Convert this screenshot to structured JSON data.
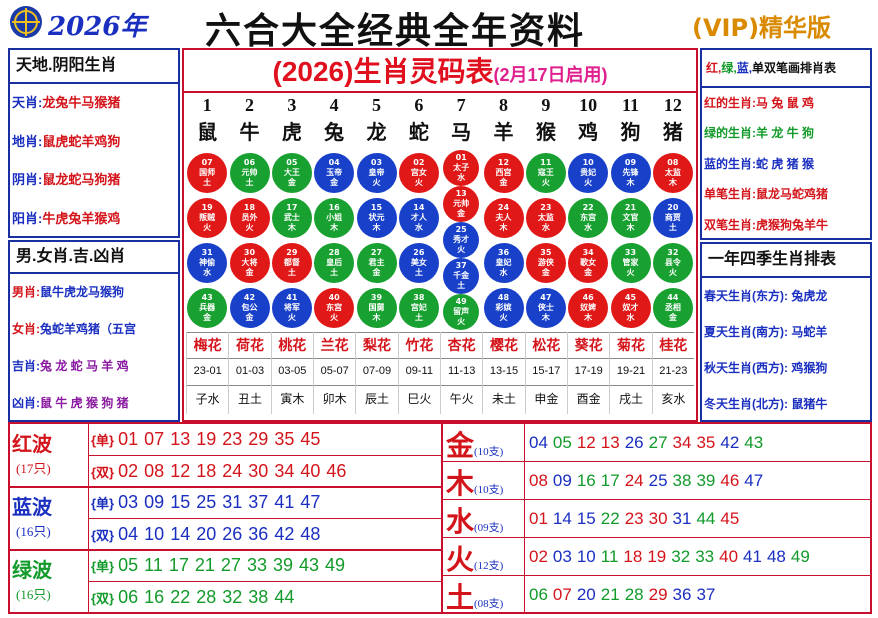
{
  "header": {
    "year": "2026年",
    "title": "六合大全经典全年资料",
    "badge": "(VIP)精华版"
  },
  "left_top": {
    "title": "天地.阴阳生肖",
    "rows": [
      {
        "label": "天肖:",
        "value": "龙兔牛马猴猪",
        "label_color": "#1a2fc0",
        "value_color": "#d4141b"
      },
      {
        "label": "地肖:",
        "value": "鼠虎蛇羊鸡狗",
        "label_color": "#1a2fc0",
        "value_color": "#d4141b"
      },
      {
        "label": "阴肖:",
        "value": "鼠龙蛇马狗猪",
        "label_color": "#1a2fc0",
        "value_color": "#d4141b"
      },
      {
        "label": "阳肖:",
        "value": "牛虎兔羊猴鸡",
        "label_color": "#1a2fc0",
        "value_color": "#d4141b"
      }
    ]
  },
  "left_bottom": {
    "title": "男.女肖.吉.凶肖",
    "rows": [
      {
        "label": "男肖:",
        "value": "鼠牛虎龙马猴狗",
        "label_color": "#d4141b",
        "value_color": "#1a2fc0"
      },
      {
        "label": "女肖:",
        "value": "兔蛇羊鸡猪（五宫",
        "label_color": "#d4141b",
        "value_color": "#1a2fc0"
      },
      {
        "label": "吉肖:",
        "value": "兔 龙 蛇 马 羊 鸡",
        "label_color": "#1a2fc0",
        "value_color": "#8a1aa0"
      },
      {
        "label": "凶肖:",
        "value": "鼠 牛 虎 猴 狗 猪",
        "label_color": "#1a2fc0",
        "value_color": "#8a1aa0"
      }
    ]
  },
  "table": {
    "title": "(2026)生肖灵码表",
    "subtitle": "(2月17日启用)",
    "columns": [
      {
        "number": 1,
        "zodiac": "鼠",
        "flower": "梅花",
        "time": "23-01",
        "branch": "子水",
        "balls": [
          {
            "num": "07",
            "name": "国师",
            "element": "土",
            "color": "red"
          },
          {
            "num": "19",
            "name": "叛贼",
            "element": "火",
            "color": "red"
          },
          {
            "num": "31",
            "name": "神偷",
            "element": "水",
            "color": "blue"
          },
          {
            "num": "43",
            "name": "兵器",
            "element": "金",
            "color": "green"
          }
        ]
      },
      {
        "number": 2,
        "zodiac": "牛",
        "flower": "荷花",
        "time": "01-03",
        "branch": "丑土",
        "balls": [
          {
            "num": "06",
            "name": "元帅",
            "element": "土",
            "color": "green"
          },
          {
            "num": "18",
            "name": "员外",
            "element": "火",
            "color": "red"
          },
          {
            "num": "30",
            "name": "大将",
            "element": "金",
            "color": "red"
          },
          {
            "num": "42",
            "name": "包公",
            "element": "金",
            "color": "blue"
          }
        ]
      },
      {
        "number": 3,
        "zodiac": "虎",
        "flower": "桃花",
        "time": "03-05",
        "branch": "寅木",
        "balls": [
          {
            "num": "05",
            "name": "大王",
            "element": "金",
            "color": "green"
          },
          {
            "num": "17",
            "name": "武士",
            "element": "木",
            "color": "green"
          },
          {
            "num": "29",
            "name": "都督",
            "element": "土",
            "color": "red"
          },
          {
            "num": "41",
            "name": "将军",
            "element": "火",
            "color": "blue"
          }
        ]
      },
      {
        "number": 4,
        "zodiac": "兔",
        "flower": "兰花",
        "time": "05-07",
        "branch": "卯木",
        "balls": [
          {
            "num": "04",
            "name": "玉帝",
            "element": "金",
            "color": "blue"
          },
          {
            "num": "16",
            "name": "小姐",
            "element": "木",
            "color": "green"
          },
          {
            "num": "28",
            "name": "皇后",
            "element": "土",
            "color": "green"
          },
          {
            "num": "40",
            "name": "东宫",
            "element": "火",
            "color": "red"
          }
        ]
      },
      {
        "number": 5,
        "zodiac": "龙",
        "flower": "梨花",
        "time": "07-09",
        "branch": "辰土",
        "balls": [
          {
            "num": "03",
            "name": "皇帝",
            "element": "火",
            "color": "blue"
          },
          {
            "num": "15",
            "name": "状元",
            "element": "木",
            "color": "blue"
          },
          {
            "num": "27",
            "name": "君主",
            "element": "金",
            "color": "green"
          },
          {
            "num": "39",
            "name": "国舅",
            "element": "木",
            "color": "green"
          }
        ]
      },
      {
        "number": 6,
        "zodiac": "蛇",
        "flower": "竹花",
        "time": "09-11",
        "branch": "巳火",
        "balls": [
          {
            "num": "02",
            "name": "宫女",
            "element": "火",
            "color": "red"
          },
          {
            "num": "14",
            "name": "才人",
            "element": "水",
            "color": "blue"
          },
          {
            "num": "26",
            "name": "美女",
            "element": "土",
            "color": "blue"
          },
          {
            "num": "38",
            "name": "宫妃",
            "element": "土",
            "color": "green"
          }
        ]
      },
      {
        "number": 7,
        "zodiac": "马",
        "flower": "杏花",
        "time": "11-13",
        "branch": "午火",
        "balls": [
          {
            "num": "01",
            "name": "太子",
            "element": "水",
            "color": "red"
          },
          {
            "num": "13",
            "name": "元帅",
            "element": "金",
            "color": "red"
          },
          {
            "num": "25",
            "name": "秀才",
            "element": "火",
            "color": "blue"
          },
          {
            "num": "37",
            "name": "千金",
            "element": "土",
            "color": "blue"
          },
          {
            "num": "49",
            "name": "留声",
            "element": "火",
            "color": "green"
          }
        ]
      },
      {
        "number": 8,
        "zodiac": "羊",
        "flower": "樱花",
        "time": "13-15",
        "branch": "未土",
        "balls": [
          {
            "num": "12",
            "name": "西宫",
            "element": "金",
            "color": "red"
          },
          {
            "num": "24",
            "name": "夫人",
            "element": "木",
            "color": "red"
          },
          {
            "num": "36",
            "name": "皇妃",
            "element": "水",
            "color": "blue"
          },
          {
            "num": "48",
            "name": "彩嫔",
            "element": "火",
            "color": "blue"
          }
        ]
      },
      {
        "number": 9,
        "zodiac": "猴",
        "flower": "松花",
        "time": "15-17",
        "branch": "申金",
        "balls": [
          {
            "num": "11",
            "name": "寇王",
            "element": "火",
            "color": "green"
          },
          {
            "num": "23",
            "name": "太监",
            "element": "水",
            "color": "red"
          },
          {
            "num": "35",
            "name": "游侠",
            "element": "金",
            "color": "red"
          },
          {
            "num": "47",
            "name": "侠士",
            "element": "木",
            "color": "blue"
          }
        ]
      },
      {
        "number": 10,
        "zodiac": "鸡",
        "flower": "葵花",
        "time": "17-19",
        "branch": "酉金",
        "balls": [
          {
            "num": "10",
            "name": "贵妃",
            "element": "火",
            "color": "blue"
          },
          {
            "num": "22",
            "name": "东宫",
            "element": "水",
            "color": "green"
          },
          {
            "num": "34",
            "name": "歌女",
            "element": "金",
            "color": "red"
          },
          {
            "num": "46",
            "name": "奴婢",
            "element": "木",
            "color": "red"
          }
        ]
      },
      {
        "number": 11,
        "zodiac": "狗",
        "flower": "菊花",
        "time": "19-21",
        "branch": "戌土",
        "balls": [
          {
            "num": "09",
            "name": "先锋",
            "element": "木",
            "color": "blue"
          },
          {
            "num": "21",
            "name": "文官",
            "element": "木",
            "color": "green"
          },
          {
            "num": "33",
            "name": "管家",
            "element": "火",
            "color": "green"
          },
          {
            "num": "45",
            "name": "奴才",
            "element": "水",
            "color": "red"
          }
        ]
      },
      {
        "number": 12,
        "zodiac": "猪",
        "flower": "桂花",
        "time": "21-23",
        "branch": "亥水",
        "balls": [
          {
            "num": "08",
            "name": "太监",
            "element": "木",
            "color": "red"
          },
          {
            "num": "20",
            "name": "商贾",
            "element": "土",
            "color": "blue"
          },
          {
            "num": "32",
            "name": "县令",
            "element": "火",
            "color": "green"
          },
          {
            "num": "44",
            "name": "丞相",
            "element": "金",
            "color": "green"
          }
        ]
      }
    ]
  },
  "right_top": {
    "header": [
      {
        "text": "红,",
        "color": "#d4141b"
      },
      {
        "text": "绿,",
        "color": "#129a2a"
      },
      {
        "text": "蓝,",
        "color": "#1a2fc0"
      },
      {
        "text": "单双笔画排肖表",
        "color": "#111111"
      }
    ],
    "rows": [
      {
        "label": "红的生肖:",
        "value": "马 兔 鼠 鸡",
        "label_color": "#d4141b",
        "value_color": "#d4141b"
      },
      {
        "label": "绿的生肖:",
        "value": "羊 龙 牛 狗",
        "label_color": "#129a2a",
        "value_color": "#129a2a"
      },
      {
        "label": "蓝的生肖:",
        "value": "蛇 虎 猪 猴",
        "label_color": "#1a2fc0",
        "value_color": "#1a2fc0"
      },
      {
        "label": "单笔生肖:",
        "value": "鼠龙马蛇鸡猪",
        "label_color": "#d4141b",
        "value_color": "#d4141b"
      },
      {
        "label": "双笔生肖:",
        "value": "虎猴狗兔羊牛",
        "label_color": "#d4141b",
        "value_color": "#d4141b"
      }
    ]
  },
  "right_bottom": {
    "title": "一年四季生肖排表",
    "rows": [
      {
        "label": "春天生肖(东方)",
        "value": ": 兔虎龙",
        "label_color": "#1a2fc0",
        "value_color": "#1a2fc0"
      },
      {
        "label": "夏天生肖(南方)",
        "value": ": 马蛇羊",
        "label_color": "#1a2fc0",
        "value_color": "#1a2fc0"
      },
      {
        "label": "秋天生肖(西方)",
        "value": ": 鸡猴狗",
        "label_color": "#1a2fc0",
        "value_color": "#1a2fc0"
      },
      {
        "label": "冬天生肖(北方)",
        "value": ": 鼠猪牛",
        "label_color": "#1a2fc0",
        "value_color": "#1a2fc0"
      }
    ]
  },
  "waves": [
    {
      "name": "红波",
      "count": "(17只)",
      "color": "#d4141b",
      "rows": [
        {
          "label": "{单}",
          "numbers": [
            "01",
            "07",
            "13",
            "19",
            "23",
            "29",
            "35",
            "45"
          ]
        },
        {
          "label": "{双}",
          "numbers": [
            "02",
            "08",
            "12",
            "18",
            "24",
            "30",
            "34",
            "40",
            "46"
          ]
        }
      ]
    },
    {
      "name": "蓝波",
      "count": "(16只)",
      "color": "#1a2fc0",
      "rows": [
        {
          "label": "{单}",
          "numbers": [
            "03",
            "09",
            "15",
            "25",
            "31",
            "37",
            "41",
            "47"
          ]
        },
        {
          "label": "{双}",
          "numbers": [
            "04",
            "10",
            "14",
            "20",
            "26",
            "36",
            "42",
            "48"
          ]
        }
      ]
    },
    {
      "name": "绿波",
      "count": "(16只)",
      "color": "#129a2a",
      "rows": [
        {
          "label": "{单}",
          "numbers": [
            "05",
            "11",
            "17",
            "21",
            "27",
            "33",
            "39",
            "43",
            "49"
          ]
        },
        {
          "label": "{双}",
          "numbers": [
            "06",
            "16",
            "22",
            "28",
            "32",
            "38",
            "44"
          ]
        }
      ]
    }
  ],
  "elements": [
    {
      "name": "金",
      "count": "(10支)",
      "numbers": [
        "04",
        "05",
        "12",
        "13",
        "26",
        "27",
        "34",
        "35",
        "42",
        "43"
      ]
    },
    {
      "name": "木",
      "count": "(10支)",
      "numbers": [
        "08",
        "09",
        "16",
        "17",
        "24",
        "25",
        "38",
        "39",
        "46",
        "47"
      ]
    },
    {
      "name": "水",
      "count": "(09支)",
      "numbers": [
        "01",
        "14",
        "15",
        "22",
        "23",
        "30",
        "31",
        "44",
        "45"
      ]
    },
    {
      "name": "火",
      "count": "(12支)",
      "numbers": [
        "02",
        "03",
        "10",
        "11",
        "18",
        "19",
        "32",
        "33",
        "40",
        "41",
        "48",
        "49"
      ]
    },
    {
      "name": "土",
      "count": "(08支)",
      "numbers": [
        "06",
        "07",
        "20",
        "21",
        "28",
        "29",
        "36",
        "37"
      ]
    }
  ]
}
